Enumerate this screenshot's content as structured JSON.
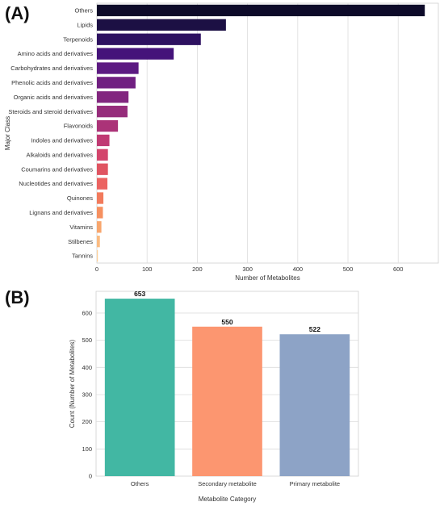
{
  "panels": {
    "a_letter": "(A)",
    "b_letter": "(B)"
  },
  "chart_data": [
    {
      "type": "bar",
      "orientation": "horizontal",
      "ylabel": "Major Class",
      "xlabel": "Number of Metabolites",
      "xlim": [
        0,
        680
      ],
      "xticks": [
        0,
        100,
        200,
        300,
        400,
        500,
        600
      ],
      "grid": "vertical",
      "categories": [
        "Others",
        "Lipids",
        "Terpenoids",
        "Amino acids and derivatives",
        "Carbohydrates and derivatives",
        "Phenolic acids and derivatives",
        "Organic acids and derivatives",
        "Steroids and steroid derivatives",
        "Flavonoids",
        "Indoles and derivatives",
        "Alkaloids and derivatives",
        "Coumarins and derivatives",
        "Nucleotides and derivatives",
        "Quinones",
        "Lignans and derivatives",
        "Vitamins",
        "Stilbenes",
        "Tannins"
      ],
      "values": [
        653,
        257,
        207,
        153,
        83,
        77,
        63,
        61,
        42,
        25,
        22,
        22,
        21,
        13,
        12,
        9,
        6,
        2
      ],
      "colors": [
        "#0d0a29",
        "#1c1044",
        "#2d1160",
        "#45137a",
        "#5c1a82",
        "#701f81",
        "#82267f",
        "#962c7b",
        "#ab3378",
        "#c03a73",
        "#d3456c",
        "#e05461",
        "#eb6361",
        "#f27a5c",
        "#f69060",
        "#f8a66d",
        "#fbbb81",
        "#fdd09a"
      ]
    },
    {
      "type": "bar",
      "orientation": "vertical",
      "xlabel": "Metabolite Category",
      "ylabel": "Count (Number of Metabolites)",
      "ylim": [
        0,
        680
      ],
      "yticks": [
        0,
        100,
        200,
        300,
        400,
        500,
        600
      ],
      "grid": "horizontal",
      "categories": [
        "Others",
        "Secondary metabolite",
        "Primary metabolite"
      ],
      "values": [
        653,
        550,
        522
      ],
      "value_labels": [
        "653",
        "550",
        "522"
      ],
      "colors": [
        "#42b7a3",
        "#fc9670",
        "#8da3c6"
      ]
    }
  ]
}
